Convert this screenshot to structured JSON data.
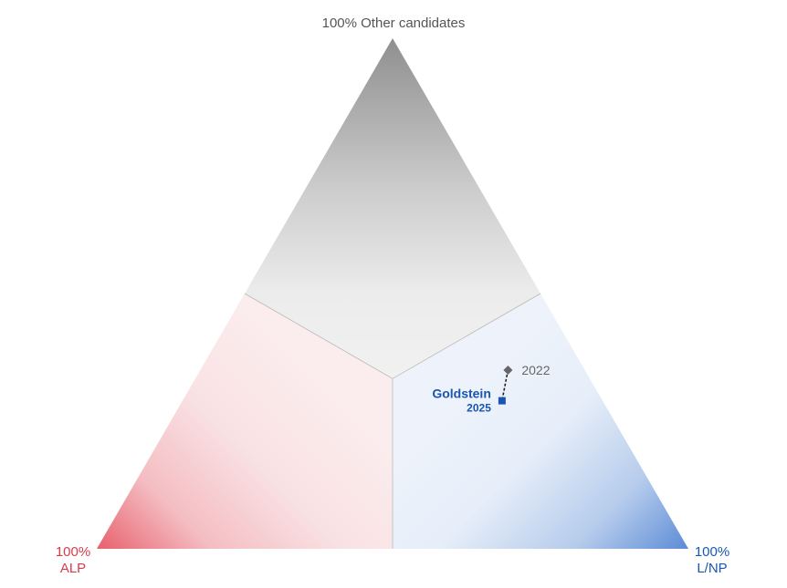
{
  "chart_data": {
    "type": "ternary",
    "vertices": {
      "top": {
        "line1": "100% Other candidates",
        "line2": "",
        "color": "#808080"
      },
      "left": {
        "line1": "100%",
        "line2": "ALP",
        "color": "#d63b4b"
      },
      "right": {
        "line1": "100%",
        "line2": "L/NP",
        "color": "#1a56b0"
      }
    },
    "regions": {
      "other_color": "#9a9a9a",
      "alp_color": "#e86a75",
      "lnp_color": "#6e99d9"
    },
    "series": [
      {
        "name": "Goldstein",
        "points": [
          {
            "year": "2022",
            "other": 0.35,
            "alp": 0.13,
            "lnp": 0.52,
            "marker": "diamond",
            "color": "#666666"
          },
          {
            "year": "2025",
            "other": 0.29,
            "alp": 0.17,
            "lnp": 0.54,
            "marker": "square",
            "color": "#1a56b0"
          }
        ]
      }
    ]
  }
}
